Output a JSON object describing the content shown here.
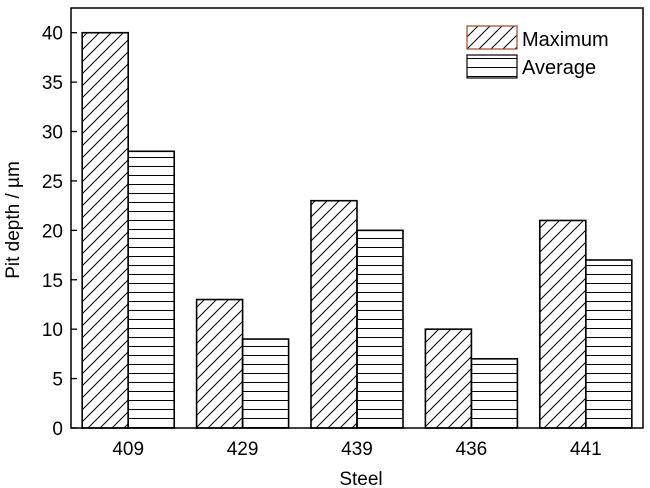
{
  "chart_data": {
    "type": "bar",
    "categories": [
      "409",
      "429",
      "439",
      "436",
      "441"
    ],
    "series": [
      {
        "name": "Maximum",
        "values": [
          40,
          13,
          23,
          10,
          21
        ],
        "pattern": "diagonal-hatch"
      },
      {
        "name": "Average",
        "values": [
          28,
          9,
          20,
          7,
          17
        ],
        "pattern": "horizontal-lines"
      }
    ],
    "xlabel": "Steel",
    "ylabel": "Pit depth / µm",
    "ylim": [
      0,
      42.5
    ],
    "yticks": [
      0,
      5,
      10,
      15,
      20,
      25,
      30,
      35,
      40
    ],
    "legend_position": "top-right",
    "grid": false,
    "colors": {
      "bar_fill": "#ffffff",
      "bar_stroke": "#000000",
      "axis": "#000000",
      "legend_highlight": "#e0622a"
    }
  }
}
